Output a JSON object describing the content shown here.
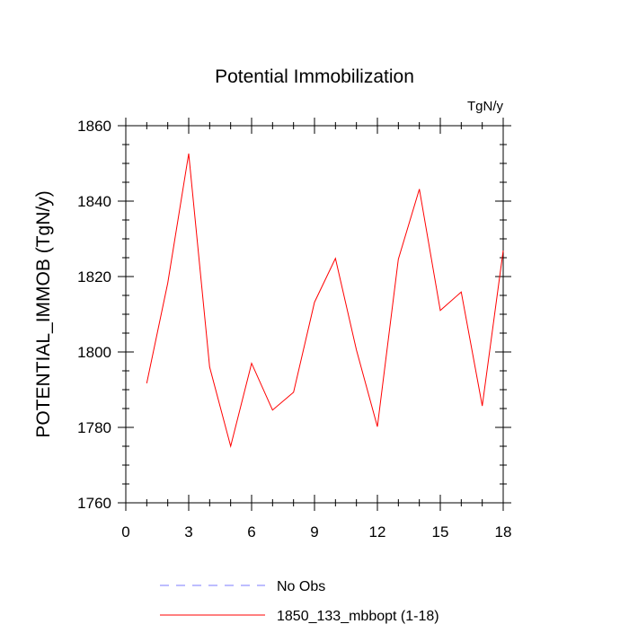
{
  "chart_data": {
    "type": "line",
    "title": "Potential Immobilization",
    "units_label": "TgN/y",
    "xlabel": "",
    "ylabel": "POTENTIAL_IMMOB  (TgN/y)",
    "xlim": [
      0,
      18
    ],
    "ylim": [
      1760,
      1860
    ],
    "x_ticks": [
      0,
      3,
      6,
      9,
      12,
      15,
      18
    ],
    "x_tick_labels": [
      "0",
      "3",
      "6",
      "9",
      "12",
      "15",
      "18"
    ],
    "y_ticks": [
      1760,
      1780,
      1800,
      1820,
      1840,
      1860
    ],
    "y_tick_labels": [
      "1760",
      "1780",
      "1800",
      "1820",
      "1840",
      "1860"
    ],
    "grid": false,
    "series": [
      {
        "name": "1850_133_mbbopt (1-18)",
        "color": "#ff0000",
        "dash": "solid",
        "x": [
          1,
          2,
          3,
          4,
          5,
          6,
          7,
          8,
          9,
          10,
          11,
          12,
          13,
          14,
          15,
          16,
          17,
          18
        ],
        "values": [
          1791.7,
          1818.3,
          1852.6,
          1796.0,
          1775.0,
          1797.0,
          1784.6,
          1789.3,
          1813.2,
          1824.8,
          1800.5,
          1780.2,
          1824.6,
          1843.2,
          1811.0,
          1815.9,
          1785.7,
          1826.9
        ]
      },
      {
        "name": "No Obs",
        "color": "#7b7bff",
        "dash": "dashed",
        "x": [],
        "values": []
      }
    ],
    "legend": {
      "placement": "bottom-left",
      "entries": [
        {
          "label": "No Obs",
          "color": "#7b7bff",
          "dash": "dashed"
        },
        {
          "label": "1850_133_mbbopt (1-18)",
          "color": "#ff0000",
          "dash": "solid"
        }
      ]
    }
  }
}
